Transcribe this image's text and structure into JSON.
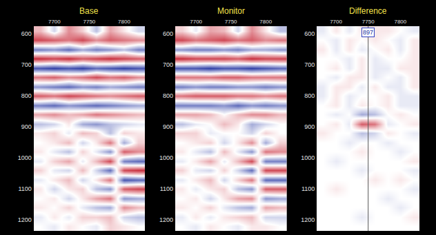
{
  "chart_data": [
    {
      "type": "heatmap",
      "title": "Base",
      "x": [
        7680,
        7700,
        7720,
        7740,
        7760,
        7780,
        7800,
        7820
      ],
      "y": [
        590,
        620,
        650,
        680,
        710,
        740,
        770,
        800,
        830,
        860,
        890,
        920,
        950,
        980,
        1010,
        1040,
        1070,
        1100,
        1130,
        1160,
        1190,
        1220
      ],
      "z": [
        [
          0.3,
          -0.2,
          0.5,
          0.2,
          -0.3,
          0.4,
          0.1,
          -0.2
        ],
        [
          0.8,
          0.7,
          0.6,
          0.8,
          0.5,
          0.7,
          0.6,
          0.5
        ],
        [
          -0.6,
          -0.5,
          -0.7,
          -0.4,
          -0.6,
          -0.5,
          -0.3,
          -0.6
        ],
        [
          0.9,
          0.8,
          0.9,
          0.7,
          0.8,
          0.9,
          0.8,
          0.7
        ],
        [
          -0.8,
          -0.9,
          -0.8,
          -0.9,
          -0.7,
          -0.8,
          -0.9,
          -0.8
        ],
        [
          0.6,
          0.7,
          0.5,
          0.6,
          0.8,
          0.6,
          0.7,
          0.5
        ],
        [
          -0.5,
          -0.6,
          -0.7,
          -0.5,
          -0.6,
          -0.4,
          -0.5,
          -0.6
        ],
        [
          0.7,
          0.6,
          0.8,
          0.7,
          0.6,
          0.5,
          0.6,
          0.7
        ],
        [
          -0.6,
          -0.7,
          -0.5,
          -0.6,
          -0.7,
          -0.6,
          -0.5,
          -0.4
        ],
        [
          0.4,
          0.5,
          0.3,
          0.4,
          0.6,
          0.5,
          0.4,
          0.3
        ],
        [
          -0.3,
          -0.2,
          0.1,
          -0.4,
          -0.5,
          -0.3,
          -0.2,
          -0.1
        ],
        [
          0.1,
          0.2,
          -0.1,
          0.3,
          0.2,
          -0.3,
          0.2,
          0.1
        ],
        [
          0.0,
          0.1,
          0.3,
          -0.2,
          0.1,
          0.6,
          -0.4,
          0.2
        ],
        [
          0.1,
          -0.1,
          -0.3,
          0.2,
          -0.1,
          -0.5,
          0.7,
          0.5
        ],
        [
          -0.1,
          0.2,
          0.4,
          -0.1,
          0.3,
          0.8,
          -0.6,
          -0.7
        ],
        [
          0.2,
          -0.1,
          -0.2,
          0.3,
          -0.2,
          -0.7,
          0.8,
          0.9
        ],
        [
          -0.1,
          0.1,
          0.3,
          -0.2,
          0.1,
          0.6,
          -0.8,
          -0.7
        ],
        [
          0.1,
          -0.2,
          0.1,
          0.2,
          -0.3,
          -0.5,
          0.7,
          0.8
        ],
        [
          0.0,
          0.1,
          -0.2,
          0.1,
          0.4,
          0.6,
          -0.5,
          -0.4
        ],
        [
          0.1,
          0.0,
          0.2,
          -0.1,
          -0.3,
          -0.4,
          0.5,
          0.3
        ],
        [
          -0.1,
          0.1,
          -0.1,
          0.2,
          0.2,
          0.3,
          -0.2,
          -0.3
        ],
        [
          0.0,
          -0.1,
          0.1,
          0.0,
          -0.1,
          0.2,
          0.1,
          0.0
        ]
      ],
      "zlim": [
        -1,
        1
      ],
      "colors": [
        "#1b2c9e",
        "#ffffff",
        "#c41a2a"
      ],
      "xlim": [
        7670,
        7830
      ],
      "xticks": [
        7700,
        7750,
        7800
      ],
      "ylim": [
        1235,
        575
      ],
      "yticks": [
        600,
        700,
        800,
        900,
        1000,
        1100,
        1200
      ]
    },
    {
      "type": "heatmap",
      "title": "Monitor",
      "x": [
        7680,
        7700,
        7720,
        7740,
        7760,
        7780,
        7800,
        7820
      ],
      "y": [
        590,
        620,
        650,
        680,
        710,
        740,
        770,
        800,
        830,
        860,
        890,
        920,
        950,
        980,
        1010,
        1040,
        1070,
        1100,
        1130,
        1160,
        1190,
        1220
      ],
      "z": [
        [
          0.2,
          -0.1,
          0.4,
          0.3,
          -0.2,
          0.5,
          0.1,
          -0.3
        ],
        [
          0.8,
          0.6,
          0.7,
          0.8,
          0.6,
          0.7,
          0.5,
          0.6
        ],
        [
          -0.5,
          -0.6,
          -0.6,
          -0.5,
          -0.6,
          -0.4,
          -0.4,
          -0.5
        ],
        [
          0.9,
          0.8,
          0.8,
          0.8,
          0.7,
          0.9,
          0.8,
          0.8
        ],
        [
          -0.8,
          -0.8,
          -0.9,
          -0.8,
          -0.8,
          -0.9,
          -0.8,
          -0.7
        ],
        [
          0.6,
          0.6,
          0.6,
          0.7,
          0.7,
          0.6,
          0.6,
          0.6
        ],
        [
          -0.6,
          -0.5,
          -0.6,
          -0.6,
          -0.5,
          -0.5,
          -0.6,
          -0.5
        ],
        [
          0.6,
          0.7,
          0.7,
          0.7,
          0.6,
          0.6,
          0.5,
          0.6
        ],
        [
          -0.6,
          -0.6,
          -0.6,
          -0.5,
          -0.7,
          -0.5,
          -0.6,
          -0.5
        ],
        [
          0.4,
          0.4,
          0.3,
          0.0,
          0.3,
          0.5,
          0.5,
          0.3
        ],
        [
          -0.3,
          -0.1,
          0.0,
          0.3,
          0.1,
          -0.4,
          -0.2,
          0.0
        ],
        [
          0.2,
          0.2,
          -0.1,
          0.0,
          0.0,
          -0.2,
          0.2,
          0.0
        ],
        [
          0.0,
          0.1,
          0.2,
          -0.2,
          0.1,
          0.5,
          -0.4,
          0.2
        ],
        [
          0.1,
          -0.1,
          -0.3,
          0.3,
          -0.1,
          -0.5,
          0.6,
          0.5
        ],
        [
          -0.1,
          0.1,
          0.4,
          -0.1,
          0.3,
          0.8,
          -0.6,
          -0.6
        ],
        [
          0.2,
          -0.1,
          -0.2,
          0.2,
          -0.2,
          -0.7,
          0.8,
          0.8
        ],
        [
          -0.1,
          0.1,
          0.3,
          -0.2,
          0.2,
          0.6,
          -0.7,
          -0.7
        ],
        [
          0.1,
          -0.1,
          0.1,
          0.2,
          -0.3,
          -0.5,
          0.7,
          0.7
        ],
        [
          0.0,
          0.1,
          -0.2,
          0.1,
          0.4,
          0.5,
          -0.5,
          -0.4
        ],
        [
          0.1,
          0.0,
          0.2,
          -0.1,
          -0.3,
          -0.4,
          0.4,
          0.3
        ],
        [
          -0.1,
          0.1,
          -0.1,
          0.1,
          0.2,
          0.3,
          -0.2,
          -0.2
        ],
        [
          0.0,
          -0.1,
          0.1,
          0.0,
          -0.1,
          0.1,
          0.1,
          0.0
        ]
      ],
      "zlim": [
        -1,
        1
      ],
      "colors": [
        "#1b2c9e",
        "#ffffff",
        "#c41a2a"
      ],
      "xlim": [
        7670,
        7830
      ],
      "xticks": [
        7700,
        7750,
        7800
      ],
      "ylim": [
        1235,
        575
      ],
      "yticks": [
        600,
        700,
        800,
        900,
        1000,
        1100,
        1200
      ]
    },
    {
      "type": "heatmap",
      "title": "Difference",
      "x": [
        7680,
        7700,
        7720,
        7740,
        7760,
        7780,
        7800,
        7820
      ],
      "y": [
        590,
        620,
        650,
        680,
        710,
        740,
        770,
        800,
        830,
        860,
        890,
        920,
        950,
        980,
        1010,
        1040,
        1070,
        1100,
        1130,
        1160,
        1190,
        1220
      ],
      "z": [
        [
          -0.1,
          0.1,
          -0.1,
          0.1,
          0.1,
          0.1,
          0.0,
          -0.1
        ],
        [
          0.0,
          -0.1,
          0.1,
          0.0,
          0.1,
          0.0,
          -0.1,
          0.1
        ],
        [
          0.1,
          -0.1,
          0.1,
          -0.1,
          0.0,
          0.1,
          -0.1,
          0.1
        ],
        [
          0.0,
          0.0,
          -0.1,
          0.1,
          -0.1,
          0.0,
          0.0,
          0.1
        ],
        [
          0.0,
          0.1,
          -0.1,
          0.1,
          -0.1,
          -0.1,
          0.1,
          0.1
        ],
        [
          0.0,
          -0.1,
          0.1,
          0.1,
          -0.1,
          0.0,
          -0.1,
          0.1
        ],
        [
          -0.1,
          0.1,
          0.1,
          -0.1,
          0.1,
          -0.1,
          -0.1,
          0.1
        ],
        [
          -0.1,
          0.1,
          -0.1,
          0.0,
          0.0,
          0.1,
          -0.1,
          -0.1
        ],
        [
          0.0,
          0.1,
          -0.1,
          0.1,
          0.0,
          0.1,
          -0.1,
          -0.1
        ],
        [
          0.0,
          -0.1,
          0.0,
          -0.4,
          -0.3,
          0.0,
          0.1,
          0.0
        ],
        [
          0.0,
          0.1,
          -0.1,
          0.7,
          0.6,
          -0.1,
          0.0,
          0.1
        ],
        [
          0.1,
          0.0,
          0.0,
          -0.3,
          -0.2,
          0.1,
          0.0,
          -0.1
        ],
        [
          0.0,
          0.0,
          -0.1,
          0.0,
          0.0,
          -0.1,
          0.0,
          0.0
        ],
        [
          0.0,
          0.0,
          0.0,
          0.1,
          0.0,
          0.0,
          -0.1,
          0.0
        ],
        [
          0.0,
          -0.1,
          0.0,
          0.0,
          0.0,
          0.0,
          0.0,
          0.1
        ],
        [
          0.0,
          0.0,
          0.0,
          -0.1,
          0.0,
          0.0,
          0.0,
          -0.1
        ],
        [
          0.0,
          0.0,
          0.0,
          0.0,
          0.1,
          0.0,
          0.1,
          0.0
        ],
        [
          0.0,
          0.1,
          0.0,
          0.0,
          0.0,
          0.0,
          0.0,
          -0.1
        ],
        [
          0.0,
          0.0,
          0.0,
          0.0,
          0.0,
          -0.1,
          0.0,
          0.0
        ],
        [
          0.0,
          0.0,
          0.0,
          0.0,
          0.0,
          0.0,
          -0.1,
          0.0
        ],
        [
          0.0,
          0.0,
          0.0,
          -0.1,
          0.0,
          0.0,
          0.0,
          0.1
        ],
        [
          0.0,
          0.0,
          0.0,
          0.0,
          0.0,
          0.0,
          0.0,
          0.0
        ]
      ],
      "zlim": [
        -1,
        1
      ],
      "colors": [
        "#1b2c9e",
        "#ffffff",
        "#c41a2a"
      ],
      "xlim": [
        7670,
        7830
      ],
      "xticks": [
        7700,
        7750,
        7800
      ],
      "ylim": [
        1235,
        575
      ],
      "yticks": [
        600,
        700,
        800,
        900,
        1000,
        1100,
        1200
      ],
      "annotations": [
        {
          "x": 7750,
          "text": "897"
        }
      ]
    }
  ]
}
